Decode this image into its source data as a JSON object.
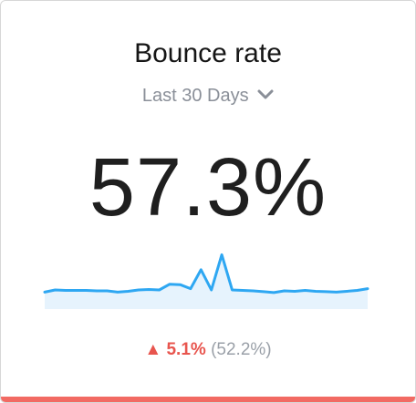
{
  "widget": {
    "title": "Bounce rate",
    "range_label": "Last 30 Days",
    "value": "57.3%",
    "change_icon": "up-triangle-icon",
    "change_value": "5.1%",
    "previous_value": "(52.2%)",
    "accent_color": "#f26a63",
    "line_color": "#2ea7f2"
  },
  "sparkline": {
    "values": [
      60.1,
      60.6,
      60.5,
      60.5,
      60.5,
      60.4,
      60.4,
      60.1,
      60.3,
      60.6,
      60.7,
      60.6,
      61.9,
      61.8,
      60.9,
      65.2,
      60.6,
      68.6,
      60.6,
      60.5,
      60.4,
      60.2,
      60.0,
      60.4,
      60.3,
      60.5,
      60.3,
      60.2,
      60.1,
      60.3,
      60.5,
      60.9
    ],
    "min": 57.5,
    "max": 69.5
  }
}
